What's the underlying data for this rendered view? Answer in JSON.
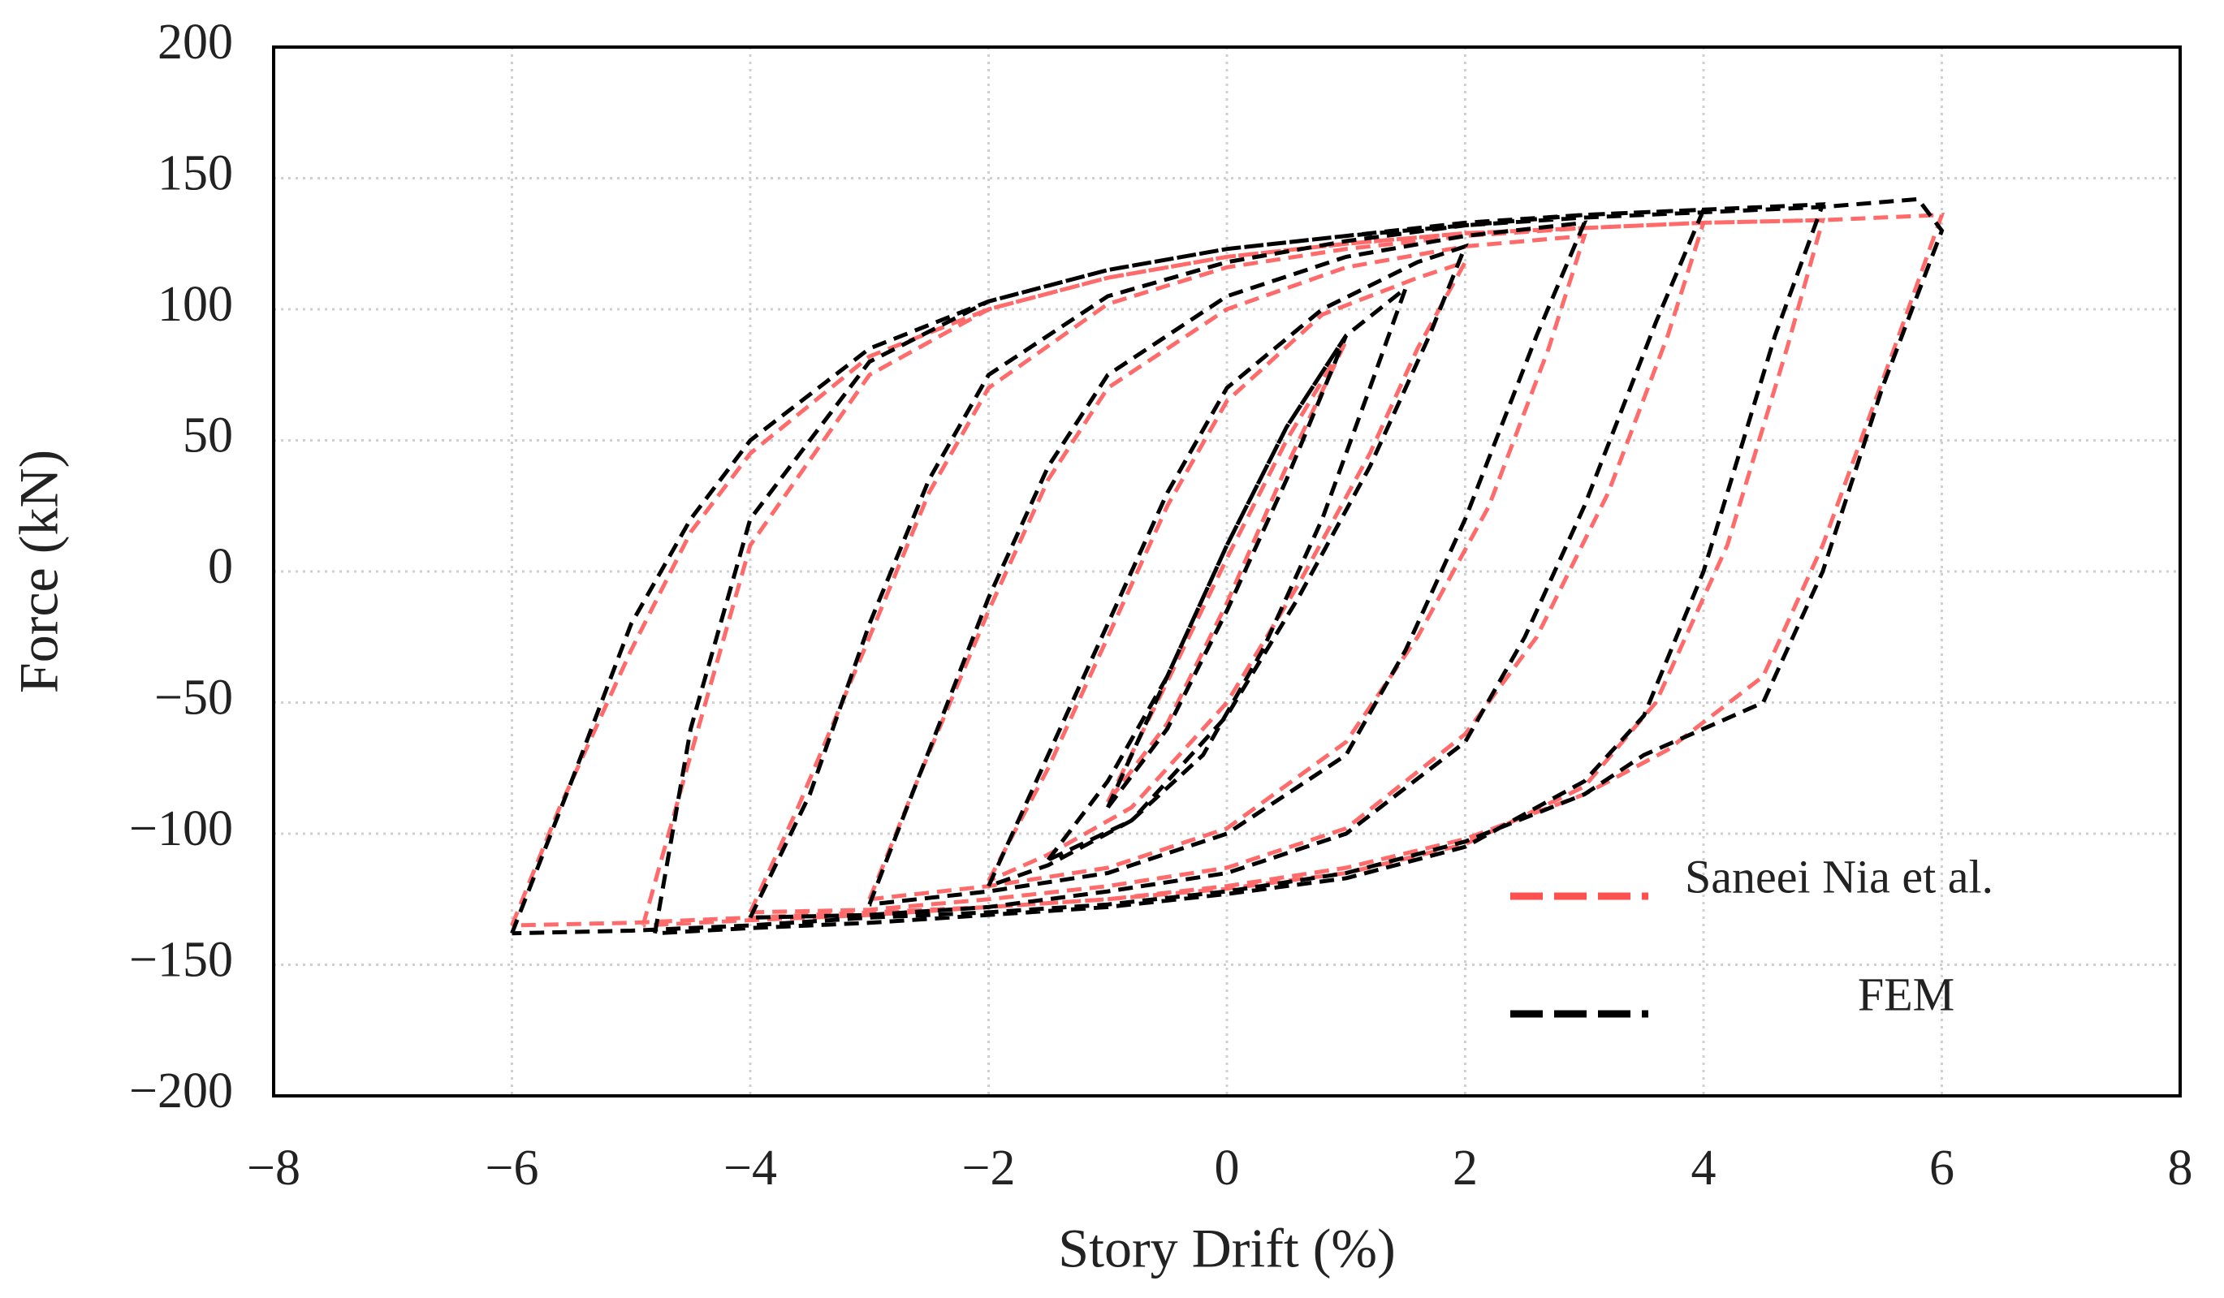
{
  "chart_data": {
    "type": "line",
    "xlabel": "Story Drift (%)",
    "ylabel": "Force (kN)",
    "xlim": [
      -8,
      8
    ],
    "ylim": [
      -200,
      200
    ],
    "xticks": [
      {
        "value": -8,
        "label": "−8"
      },
      {
        "value": -6,
        "label": "−6"
      },
      {
        "value": -4,
        "label": "−4"
      },
      {
        "value": -2,
        "label": "−2"
      },
      0,
      2,
      4,
      6,
      8
    ],
    "yticks": [
      {
        "value": -200,
        "label": "−200"
      },
      {
        "value": -150,
        "label": "−150"
      },
      {
        "value": -100,
        "label": "−100"
      },
      {
        "value": -50,
        "label": "−50"
      },
      0,
      50,
      100,
      150,
      200
    ],
    "grid": true,
    "legend": "lower right",
    "series": [
      {
        "name": "Saneei Nia et al.",
        "color": "#ff5050",
        "x": [
          -1,
          -0.5,
          0,
          0.5,
          1,
          0.5,
          0,
          -0.5,
          -1,
          null,
          -2,
          -1.5,
          -1,
          -0.5,
          0,
          0.8,
          1.6,
          2,
          1.6,
          1.2,
          0.6,
          0,
          -0.8,
          -1.5,
          -2,
          null,
          -3,
          -2.6,
          -2,
          -1.5,
          -1,
          0,
          1,
          2,
          3,
          2.7,
          2.2,
          1.6,
          1,
          0,
          -1,
          -2,
          -3,
          null,
          -4,
          -3.6,
          -3,
          -2.5,
          -2,
          -1,
          0,
          1,
          2,
          3,
          4,
          3.7,
          3.2,
          2.6,
          2,
          1,
          0,
          -1,
          -2,
          -3,
          -4,
          null,
          -4.9,
          -4.5,
          -4,
          -3,
          -2,
          -1,
          0,
          1,
          2,
          3,
          4,
          5,
          4.7,
          4.2,
          3.6,
          3,
          2,
          1,
          0,
          -1,
          -2,
          -3,
          -4,
          -4.9,
          null,
          -6,
          -5.6,
          -5,
          -4.5,
          -4,
          -3,
          -2,
          -1,
          0,
          1,
          2,
          3,
          4,
          5,
          6,
          5.6,
          5,
          4.5,
          3.7,
          3,
          2,
          1,
          0,
          -1,
          -2,
          -3,
          -4,
          -5,
          -6
        ],
        "y": [
          -88,
          -42,
          5,
          50,
          88,
          40,
          -12,
          -58,
          -88,
          null,
          -118,
          -75,
          -25,
          25,
          65,
          98,
          112,
          118,
          85,
          45,
          -5,
          -50,
          -90,
          -108,
          -118,
          null,
          -125,
          -80,
          -15,
          35,
          70,
          100,
          116,
          124,
          128,
          85,
          25,
          -25,
          -65,
          -98,
          -113,
          -120,
          -125,
          null,
          -130,
          -90,
          -25,
          30,
          70,
          102,
          116,
          123,
          128,
          131,
          133,
          90,
          30,
          -25,
          -62,
          -98,
          -113,
          -120,
          -125,
          -129,
          -130,
          null,
          -135,
          -70,
          10,
          75,
          100,
          112,
          120,
          125,
          129,
          131,
          133,
          134,
          85,
          10,
          -50,
          -82,
          -104,
          -115,
          -121,
          -125,
          -128,
          -131,
          -133,
          -135,
          null,
          -135,
          -90,
          -30,
          15,
          45,
          82,
          100,
          112,
          120,
          125,
          129,
          131,
          133,
          134,
          136,
          85,
          10,
          -40,
          -68,
          -85,
          -102,
          -113,
          -120,
          -125,
          -128,
          -130,
          -132,
          -134,
          -135
        ]
      },
      {
        "name": "FEM",
        "color": "#000000",
        "x": [
          -1,
          -0.5,
          0,
          0.5,
          1,
          0.5,
          0,
          -0.5,
          -1,
          null,
          -1.5,
          -1,
          -0.5,
          0,
          0.5,
          1,
          1.5,
          1.2,
          0.8,
          0.3,
          -0.2,
          -0.8,
          -1.5,
          null,
          -2,
          -1.6,
          -1,
          -0.5,
          0,
          0.8,
          1.6,
          2,
          1.7,
          1.2,
          0.6,
          0,
          -0.8,
          -1.5,
          -2,
          null,
          -3,
          -2.6,
          -2,
          -1.5,
          -1,
          0,
          1,
          2,
          3,
          2.6,
          2,
          1.5,
          1,
          0,
          -1,
          -2,
          -3,
          null,
          -4,
          -3.5,
          -3,
          -2.5,
          -2,
          -1,
          0,
          1,
          2,
          3,
          4,
          3.6,
          3,
          2.5,
          2,
          1,
          0,
          -1,
          -2,
          -3,
          -4,
          null,
          -4.8,
          -4.5,
          -4,
          -3,
          -2,
          -1,
          0,
          1,
          2,
          3,
          4,
          5,
          4.6,
          4,
          3.5,
          3,
          2,
          1,
          0,
          -1,
          -2,
          -3,
          -4,
          -4.8,
          null,
          -6,
          -5.5,
          -5,
          -4.5,
          -4,
          -3,
          -2,
          -1,
          0,
          1,
          2,
          3,
          4,
          5,
          5.8,
          6,
          5.5,
          5,
          4.5,
          3.5,
          3,
          2,
          1,
          0,
          -1,
          -2,
          -3,
          -4,
          -5,
          -6
        ],
        "y": [
          -90,
          -40,
          10,
          55,
          90,
          35,
          -15,
          -60,
          -90,
          null,
          -110,
          -80,
          -40,
          10,
          55,
          90,
          108,
          70,
          20,
          -30,
          -70,
          -95,
          -110,
          null,
          -120,
          -80,
          -20,
          30,
          70,
          100,
          118,
          124,
          90,
          40,
          -10,
          -55,
          -95,
          -112,
          -120,
          null,
          -127,
          -80,
          -10,
          40,
          75,
          105,
          120,
          128,
          133,
          90,
          20,
          -30,
          -70,
          -100,
          -115,
          -122,
          -127,
          null,
          -132,
          -85,
          -20,
          35,
          75,
          105,
          118,
          126,
          132,
          136,
          138,
          95,
          25,
          -25,
          -65,
          -100,
          -115,
          -122,
          -128,
          -131,
          -132,
          null,
          -138,
          -60,
          20,
          80,
          103,
          115,
          123,
          128,
          133,
          136,
          138,
          140,
          90,
          0,
          -55,
          -80,
          -105,
          -117,
          -123,
          -128,
          -131,
          -134,
          -136,
          -138,
          null,
          -138,
          -80,
          -20,
          20,
          50,
          85,
          103,
          115,
          123,
          128,
          132,
          135,
          137,
          139,
          142,
          130,
          70,
          0,
          -50,
          -70,
          -85,
          -103,
          -115,
          -122,
          -127,
          -130,
          -132,
          -135,
          -137,
          -138
        ]
      }
    ]
  }
}
